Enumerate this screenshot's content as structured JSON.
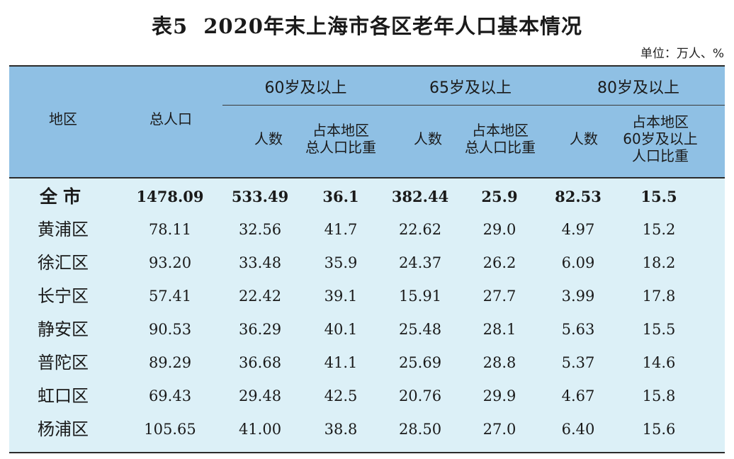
{
  "title": {
    "prefix": "表5",
    "main": "2020年末上海市各区老年人口基本情况"
  },
  "unit": "单位：万人、%",
  "header": {
    "region": "地区",
    "total": "总人口",
    "group60": "60岁及以上",
    "group65": "65岁及以上",
    "group80": "80岁及以上",
    "count": "人数",
    "share_line1": "占本地区",
    "share_line2": "总人口比重",
    "share80_line1": "占本地区",
    "share80_line2": "60岁及以上",
    "share80_line3": "人口比重"
  },
  "rows": [
    [
      "全市",
      "1478.09",
      "533.49",
      "36.1",
      "382.44",
      "25.9",
      "82.53",
      "15.5"
    ],
    [
      "黄浦区",
      "78.11",
      "32.56",
      "41.7",
      "22.62",
      "29.0",
      "4.97",
      "15.2"
    ],
    [
      "徐汇区",
      "93.20",
      "33.48",
      "35.9",
      "24.37",
      "26.2",
      "6.09",
      "18.2"
    ],
    [
      "长宁区",
      "57.41",
      "22.42",
      "39.1",
      "15.91",
      "27.7",
      "3.99",
      "17.8"
    ],
    [
      "静安区",
      "90.53",
      "36.29",
      "40.1",
      "25.48",
      "28.1",
      "5.63",
      "15.5"
    ],
    [
      "普陀区",
      "89.29",
      "36.68",
      "41.1",
      "25.69",
      "28.8",
      "5.37",
      "14.6"
    ],
    [
      "虹口区",
      "69.43",
      "29.48",
      "42.5",
      "20.76",
      "29.9",
      "4.67",
      "15.8"
    ],
    [
      "杨浦区",
      "105.65",
      "41.00",
      "38.8",
      "28.50",
      "27.0",
      "6.40",
      "15.6"
    ]
  ],
  "colors": {
    "header_bg": "#8fc0e4",
    "body_bg": "#dcf0f7",
    "rule": "#2b2b2b"
  }
}
